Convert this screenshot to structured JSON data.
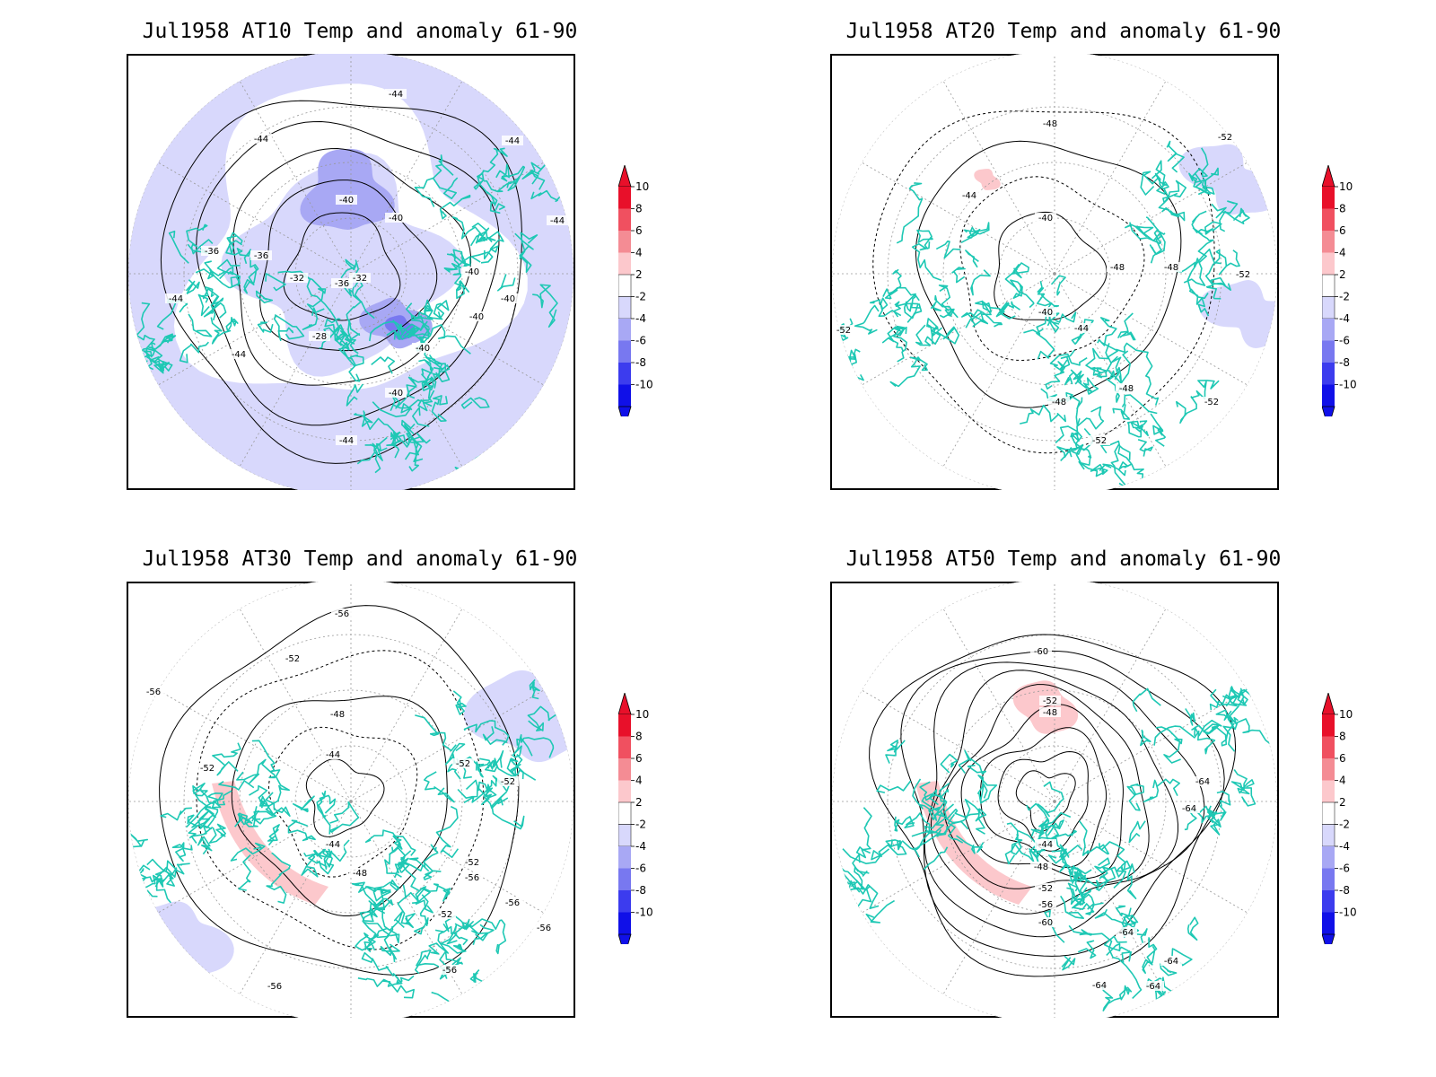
{
  "panels": [
    {
      "title": "Jul1958 AT10 Temp and anomaly 61-90",
      "contour_labels": [
        "-44",
        "-44",
        "-44",
        "-44",
        "-40",
        "-40",
        "-40",
        "-40",
        "-36",
        "-36",
        "-36",
        "-32",
        "-32",
        "-28",
        "-44",
        "-44",
        "-40",
        "-40",
        "-40",
        "-44"
      ],
      "anomaly": "cool"
    },
    {
      "title": "Jul1958 AT20 Temp and anomaly 61-90",
      "contour_labels": [
        "-48",
        "-52",
        "-44",
        "-40",
        "-48",
        "-48",
        "-52",
        "-44",
        "-40",
        "-52",
        "-48",
        "-48",
        "-52",
        "-52"
      ],
      "anomaly": "neutral"
    },
    {
      "title": "Jul1958 AT30 Temp and anomaly 61-90",
      "contour_labels": [
        "-56",
        "-52",
        "-56",
        "-48",
        "-44",
        "-52",
        "-52",
        "-52",
        "-44",
        "-48",
        "-52",
        "-56",
        "-56",
        "-56",
        "-52",
        "-56",
        "-56"
      ],
      "anomaly": "mixed"
    },
    {
      "title": "Jul1958 AT50 Temp and anomaly 61-90",
      "contour_labels": [
        "-60",
        "-52",
        "-48",
        "-64",
        "-64",
        "-44",
        "-48",
        "-52",
        "-56",
        "-60",
        "-64",
        "-64",
        "-64",
        "-64"
      ],
      "anomaly": "warm-ring"
    }
  ],
  "colorbar": {
    "labels": [
      "10",
      "8",
      "6",
      "4",
      "2",
      "-2",
      "-4",
      "-6",
      "-8",
      "-10"
    ],
    "colors": [
      "#e8102a",
      "#f05060",
      "#f48c94",
      "#fcc8cc",
      "#ffffff",
      "#d8d8fc",
      "#a8a8f4",
      "#7878f0",
      "#3c3cee",
      "#1010e8"
    ]
  },
  "colors": {
    "coastline": "#1ec8b4",
    "contour": "#000000",
    "graticule": "#999999"
  }
}
